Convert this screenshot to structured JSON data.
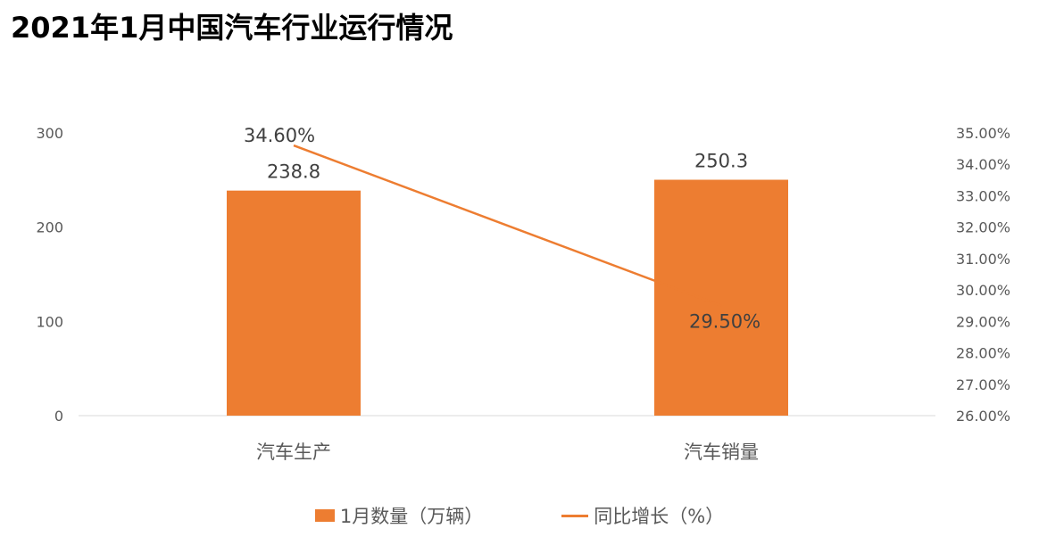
{
  "title": "2021年1月中国汽车行业运行情况",
  "colors": {
    "bar": "#ED7D31",
    "line": "#ED7D31",
    "axis": "#D9D9D9"
  },
  "chart_data": {
    "type": "bar",
    "categories": [
      "汽车生产",
      "汽车销量"
    ],
    "series": [
      {
        "name": "1月数量（万辆）",
        "kind": "bar",
        "axis": "left",
        "values": [
          238.8,
          250.3
        ],
        "labels": [
          "238.8",
          "250.3"
        ]
      },
      {
        "name": "同比增长（%）",
        "kind": "line",
        "axis": "right",
        "values": [
          34.6,
          29.5
        ],
        "labels": [
          "34.60%",
          "29.50%"
        ]
      }
    ],
    "y_left": {
      "min": 0,
      "max": 300,
      "ticks": [
        "0",
        "100",
        "200",
        "300"
      ],
      "tick_values": [
        0,
        100,
        200,
        300
      ]
    },
    "y_right": {
      "min": 26,
      "max": 35,
      "ticks": [
        "26.00%",
        "27.00%",
        "28.00%",
        "29.00%",
        "30.00%",
        "31.00%",
        "32.00%",
        "33.00%",
        "34.00%",
        "35.00%"
      ],
      "tick_values": [
        26,
        27,
        28,
        29,
        30,
        31,
        32,
        33,
        34,
        35
      ]
    },
    "legend": {
      "position": "bottom",
      "items": [
        "1月数量（万辆）",
        "同比增长（%）"
      ]
    }
  }
}
